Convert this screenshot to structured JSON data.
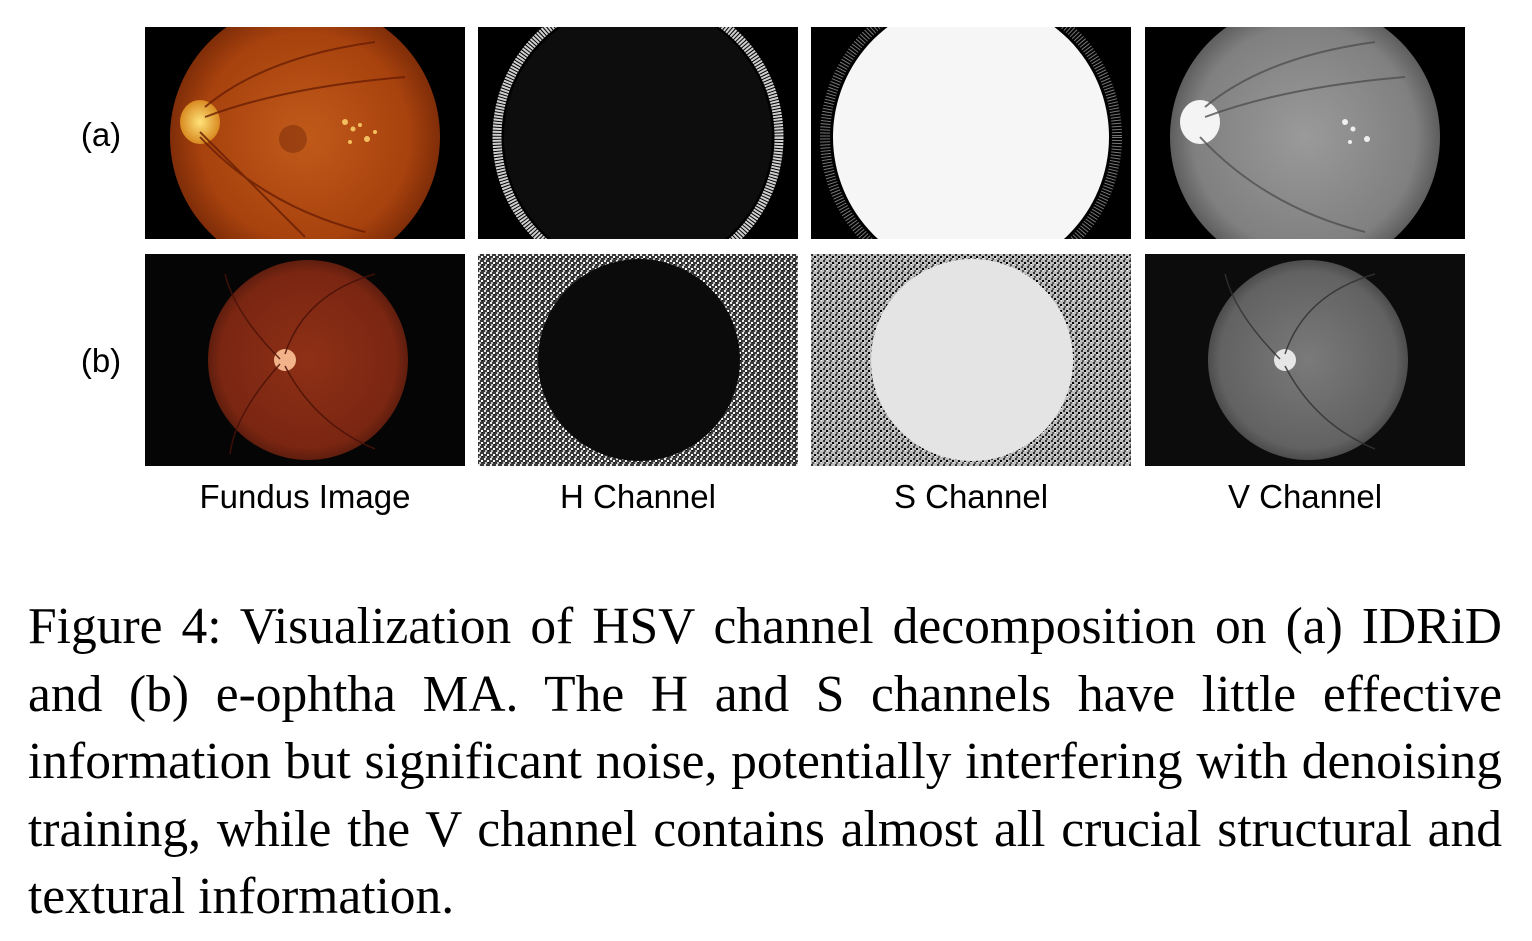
{
  "figure": {
    "row_labels": [
      "(a)",
      "(b)"
    ],
    "column_labels": [
      "Fundus Image",
      "H Channel",
      "S Channel",
      "V Channel"
    ]
  },
  "caption": {
    "text": "Figure 4: Visualization of HSV channel decomposition on (a) IDRiD and (b) e-ophtha MA. The H and S channels have little effective information but significant noise, potentially interfering with denoising training, while the V channel contains almost all crucial structural and textural information."
  },
  "colors": {
    "fundus_a": "#b54c12",
    "fundus_b": "#8a2c14",
    "optic_disc": "#f0b63a",
    "background": "#000000"
  }
}
